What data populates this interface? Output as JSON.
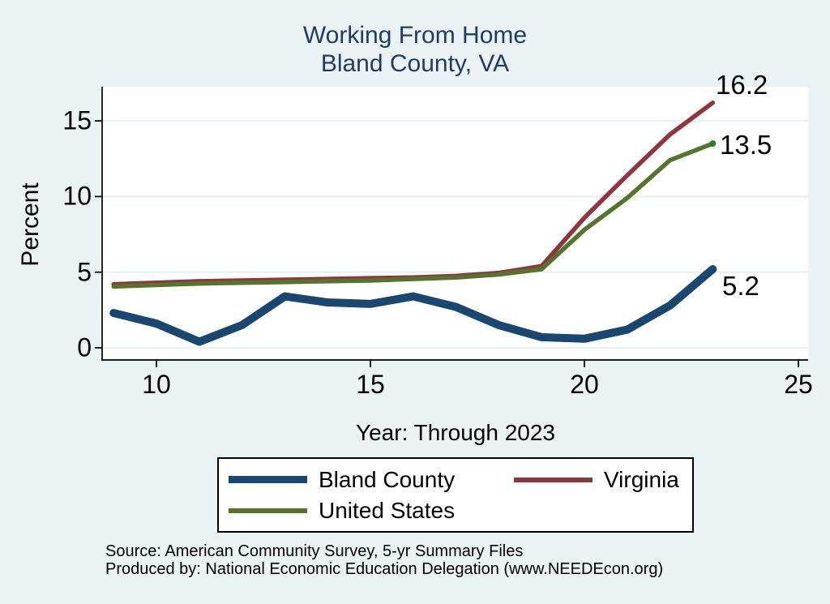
{
  "window": {
    "background_color": "#eaf2f3",
    "plot_background_color": "#ffffff",
    "gridline_color": "#e2edf1",
    "title_color": "#223a66"
  },
  "title": {
    "line1": "Working From Home",
    "line2": "Bland County, VA"
  },
  "chart_data": {
    "type": "line",
    "title": "Working From Home — Bland County, VA",
    "xlabel": "Year: Through 2023",
    "ylabel": "Percent",
    "x": [
      9,
      10,
      11,
      12,
      13,
      14,
      15,
      16,
      17,
      18,
      19,
      20,
      21,
      22,
      23
    ],
    "x_ticks": [
      10,
      15,
      20,
      25
    ],
    "y_ticks": [
      0,
      5,
      10,
      15
    ],
    "xlim": [
      8.7,
      25.2
    ],
    "ylim": [
      -0.8,
      17.3
    ],
    "grid": "horizontal",
    "legend_position": "bottom",
    "series": [
      {
        "name": "Bland County",
        "color": "#1a476f",
        "line_width": 10,
        "end_label": "5.2",
        "values": [
          2.3,
          1.6,
          0.4,
          1.5,
          3.4,
          3.0,
          2.9,
          3.4,
          2.7,
          1.5,
          0.7,
          0.6,
          1.2,
          2.8,
          5.2
        ]
      },
      {
        "name": "Virginia",
        "color": "#90353b",
        "line_width": 5.5,
        "end_label": "16.2",
        "values": [
          4.2,
          4.3,
          4.4,
          4.45,
          4.5,
          4.55,
          4.6,
          4.65,
          4.75,
          4.95,
          5.4,
          8.6,
          11.4,
          14.1,
          16.2
        ]
      },
      {
        "name": "United States",
        "color": "#55752f",
        "line_width": 5.5,
        "end_label": "13.5",
        "end_marker_color": "#208420",
        "end_marker_radius": 4,
        "values": [
          4.05,
          4.15,
          4.25,
          4.3,
          4.35,
          4.4,
          4.45,
          4.55,
          4.65,
          4.85,
          5.2,
          7.8,
          9.9,
          12.4,
          13.5
        ]
      }
    ]
  },
  "legend": {
    "items": [
      {
        "label": "Bland County",
        "color": "#1a476f",
        "swatch_height": 9
      },
      {
        "label": "Virginia",
        "color": "#90353b",
        "swatch_height": 6
      },
      {
        "label": "United States",
        "color": "#55752f",
        "swatch_height": 6
      }
    ]
  },
  "source": {
    "line1": "Source: American Community Survey, 5-yr Summary Files",
    "line2": "Produced by: National Economic Education Delegation (www.NEEDEcon.org)"
  }
}
